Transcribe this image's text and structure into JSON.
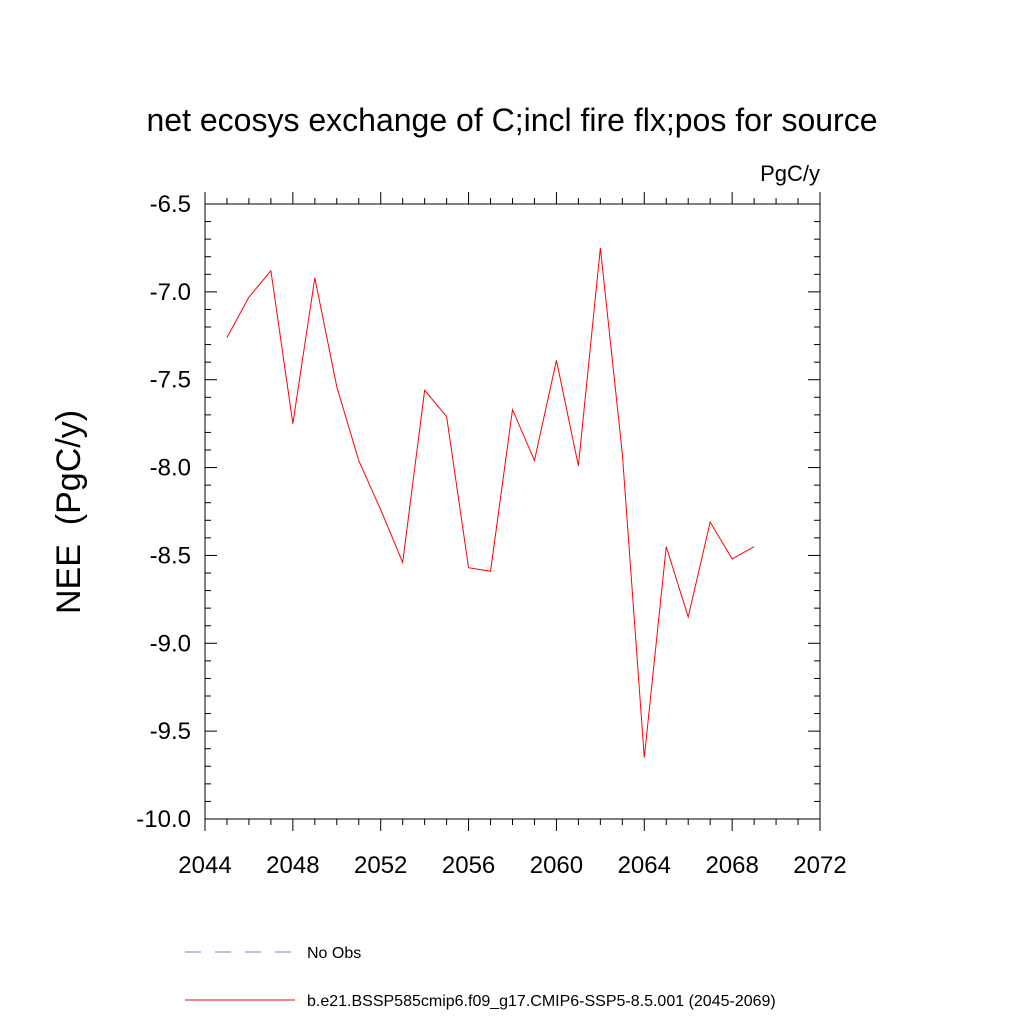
{
  "chart_data": {
    "type": "line",
    "title": "net ecosys exchange of C;incl fire flx;pos for source",
    "units_label": "PgC/y",
    "ylabel": "NEE  (PgC/y)",
    "xlabel": "",
    "xlim": [
      2044,
      2072
    ],
    "ylim": [
      -10.0,
      -6.5
    ],
    "x_ticks": [
      2044,
      2048,
      2052,
      2056,
      2060,
      2064,
      2068,
      2072
    ],
    "y_ticks": [
      -6.5,
      -7.0,
      -7.5,
      -8.0,
      -8.5,
      -9.0,
      -9.5,
      -10.0
    ],
    "y_tick_labels": [
      "-6.5",
      "-7.0",
      "-7.5",
      "-8.0",
      "-8.5",
      "-9.0",
      "-9.5",
      "-10.0"
    ],
    "x_tick_labels": [
      "2044",
      "2048",
      "2052",
      "2056",
      "2060",
      "2064",
      "2068",
      "2072"
    ],
    "grid": false,
    "legend_position": "bottom",
    "series": [
      {
        "name": "b.e21.BSSP585cmip6.f09_g17.CMIP6-SSP5-8.5.001 (2045-2069)",
        "color": "#ff0000",
        "style": "solid",
        "x": [
          2045,
          2046,
          2047,
          2048,
          2049,
          2050,
          2051,
          2052,
          2053,
          2054,
          2055,
          2056,
          2057,
          2058,
          2059,
          2060,
          2061,
          2062,
          2063,
          2064,
          2065,
          2066,
          2067,
          2068,
          2069
        ],
        "values": [
          -7.26,
          -7.03,
          -6.88,
          -7.75,
          -6.92,
          -7.54,
          -7.96,
          -8.24,
          -8.54,
          -7.56,
          -7.71,
          -8.57,
          -8.59,
          -7.67,
          -7.96,
          -7.39,
          -7.99,
          -6.75,
          -7.92,
          -9.65,
          -8.45,
          -8.85,
          -8.31,
          -8.52,
          -8.45
        ]
      },
      {
        "name": "No Obs",
        "color": "#7f7fd0",
        "style": "dashed",
        "x": [],
        "values": []
      }
    ]
  }
}
